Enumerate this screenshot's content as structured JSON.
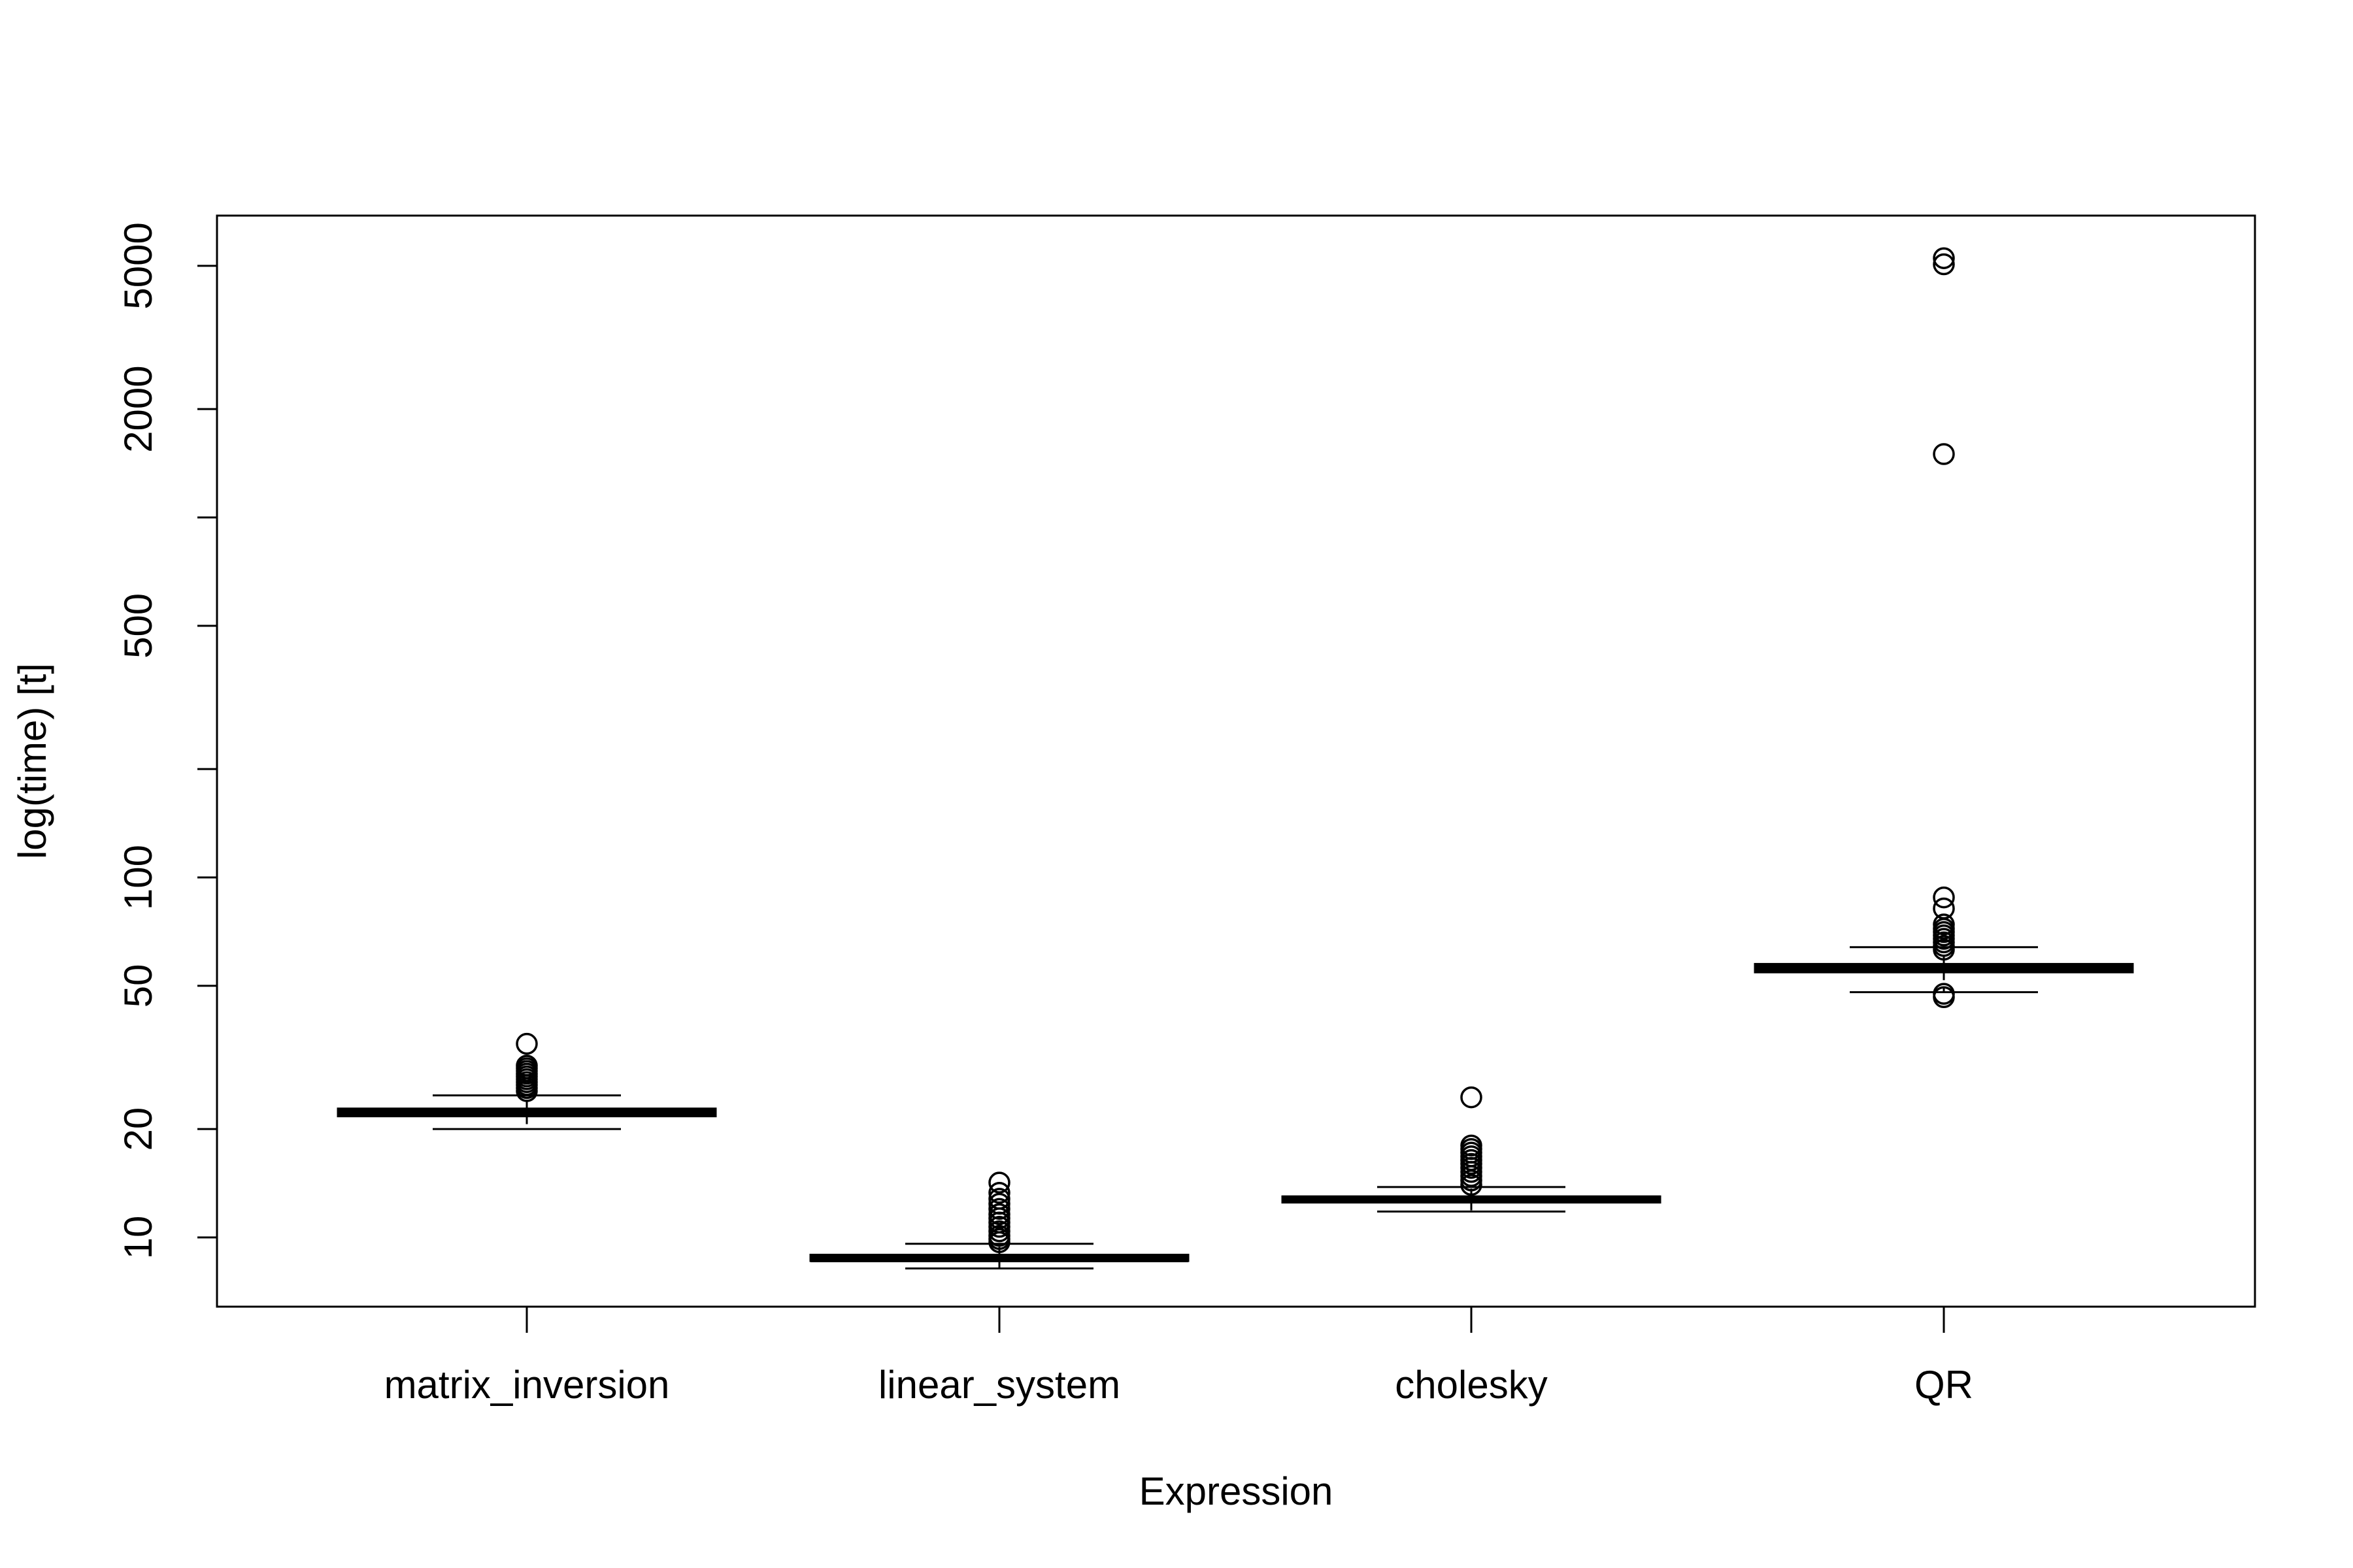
{
  "chart_data": {
    "type": "box",
    "title": "",
    "xlabel": "Expression",
    "ylabel": "log(time) [t]",
    "y_scale": "log",
    "ylim": [
      7,
      7000
    ],
    "y_ticks": [
      10,
      20,
      50,
      100,
      200,
      500,
      1000,
      2000,
      5000
    ],
    "y_tick_labels": [
      "10",
      "20",
      "50",
      "100",
      "",
      "500",
      "",
      "2000",
      "5000"
    ],
    "categories": [
      "matrix_inversion",
      "linear_system",
      "cholesky",
      "QR"
    ],
    "boxes": [
      {
        "category": "matrix_inversion",
        "whisker_low": 20,
        "q1": 21.7,
        "median": 22.2,
        "q3": 22.8,
        "whisker_high": 24.8,
        "outliers": [
          25.5,
          26,
          26.5,
          27,
          27.5,
          28,
          28.5,
          29,
          29.5,
          30,
          34.5
        ]
      },
      {
        "category": "linear_system",
        "whisker_low": 8.2,
        "q1": 8.6,
        "median": 8.75,
        "q3": 8.95,
        "whisker_high": 9.6,
        "outliers": [
          9.7,
          9.9,
          10.1,
          10.4,
          10.7,
          11,
          11.3,
          11.6,
          12,
          12.4,
          12.8,
          13.3,
          14.2
        ]
      },
      {
        "category": "cholesky",
        "whisker_low": 11.8,
        "q1": 12.5,
        "median": 12.75,
        "q3": 13,
        "whisker_high": 13.8,
        "outliers": [
          14,
          14.4,
          14.8,
          15.2,
          15.6,
          16,
          16.4,
          16.8,
          17.2,
          17.6,
          18,
          24.5
        ]
      },
      {
        "category": "QR",
        "whisker_low": 48,
        "q1": 54.5,
        "median": 56,
        "q3": 57.5,
        "whisker_high": 64,
        "outliers": [
          46.5,
          47.5,
          63,
          64.5,
          66,
          67.5,
          69,
          70.5,
          72,
          74,
          82,
          88,
          1500,
          5050,
          5250
        ]
      }
    ],
    "grid": false,
    "legend": "none"
  }
}
